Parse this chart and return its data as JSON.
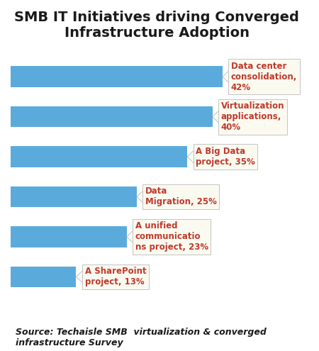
{
  "title": "SMB IT Initiatives driving Converged\nInfrastructure Adoption",
  "title_fontsize": 14,
  "title_color": "#1a1a1a",
  "bar_color": "#5aabdc",
  "categories": [
    "Data center\nconsolidation,\n42%",
    "Virtualization\napplications,\n40%",
    "A Big Data\nproject, 35%",
    "Data\nMigration, 25%",
    "A unified\ncommunicatio\nns project, 23%",
    "A SharePoint\nproject, 13%"
  ],
  "values": [
    42,
    40,
    35,
    25,
    23,
    13
  ],
  "label_color": "#c0392b",
  "label_fontsize": 8.5,
  "source_text": "Source: Techaisle SMB  virtualization & converged\ninfrastructure Survey",
  "source_fontsize": 9,
  "bg_color": "#ffffff",
  "bar_max_data": 42,
  "annotation_box_color": "#fafaf0",
  "annotation_box_edge": "#bbbbbb",
  "bar_height": 0.52
}
